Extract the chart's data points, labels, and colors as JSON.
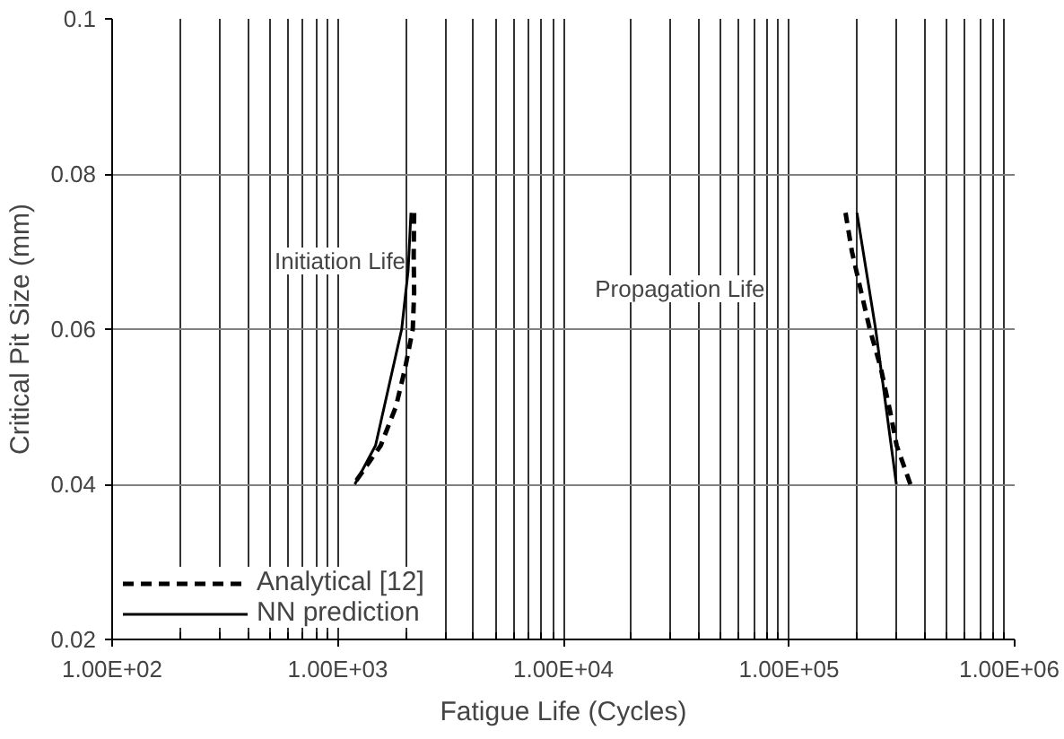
{
  "chart_data": {
    "type": "line",
    "xlabel": "Fatigue Life (Cycles)",
    "ylabel": "Critical Pit Size (mm)",
    "log": "x",
    "xlim": [
      100,
      1000000
    ],
    "ylim": [
      0.02,
      0.1
    ],
    "xticks": [
      {
        "value": 100,
        "label": "1.00E+02"
      },
      {
        "value": 1000,
        "label": "1.00E+03"
      },
      {
        "value": 10000,
        "label": "1.00E+04"
      },
      {
        "value": 100000,
        "label": "1.00E+05"
      },
      {
        "value": 1000000,
        "label": "1.00E+06"
      }
    ],
    "yticks": [
      0.02,
      0.04,
      0.06,
      0.08,
      0.1
    ],
    "grid": true,
    "legend": "bottom left",
    "series": [
      {
        "name": "Analytical [12]",
        "color": "#000000",
        "line_style": "dashed",
        "x": [
          1210,
          1550,
          1810,
          1990,
          2150,
          2180,
          2170,
          2180
        ],
        "values": [
          0.0405,
          0.045,
          0.05,
          0.055,
          0.06,
          0.0647,
          0.0695,
          0.075
        ]
      },
      {
        "name": "NN prediction",
        "color": "#000000",
        "line_style": "solid",
        "x": [
          1190,
          1470,
          1920,
          2050,
          2110
        ],
        "values": [
          0.04,
          0.045,
          0.06,
          0.0675,
          0.075
        ]
      },
      {
        "color": "#000000",
        "line_style": "dashed",
        "x": [
          345000,
          300000,
          280000,
          255000,
          228000,
          208000,
          190000,
          178000
        ],
        "values": [
          0.04,
          0.045,
          0.0495,
          0.055,
          0.06,
          0.065,
          0.07,
          0.075
        ]
      },
      {
        "color": "#000000",
        "line_style": "solid",
        "x": [
          299000,
          242000,
          200000
        ],
        "values": [
          0.04,
          0.06,
          0.075
        ]
      }
    ],
    "annotations": [
      "Initiation Life",
      "Propagation Life"
    ]
  }
}
